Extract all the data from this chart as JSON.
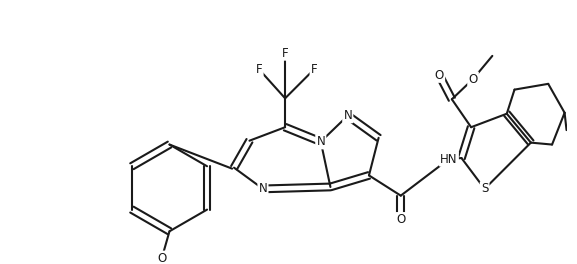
{
  "bg_color": "#ffffff",
  "line_color": "#1a1a1a",
  "line_width": 1.5,
  "font_size": 8.5,
  "fig_width": 5.77,
  "fig_height": 2.64,
  "dpi": 100,
  "xlim": [
    0,
    577
  ],
  "ylim": [
    0,
    264
  ]
}
